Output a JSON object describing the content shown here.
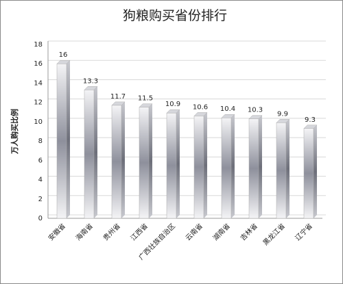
{
  "chart_data": {
    "type": "bar",
    "title": "狗粮购买省份排行",
    "y_label": "万人购买比例",
    "categories": [
      "安徽省",
      "海南省",
      "贵州省",
      "江西省",
      "广西壮族自治区",
      "云南省",
      "湖南省",
      "吉林省",
      "黑龙江省",
      "辽宁省"
    ],
    "values": [
      16,
      13.3,
      11.7,
      11.5,
      10.9,
      10.6,
      10.4,
      10.3,
      9.9,
      9.3
    ],
    "color": "#9a9ca8",
    "ylim": [
      0,
      18
    ],
    "yticks": [
      0,
      2,
      4,
      6,
      8,
      10,
      12,
      14,
      16,
      18
    ],
    "grid": true
  }
}
